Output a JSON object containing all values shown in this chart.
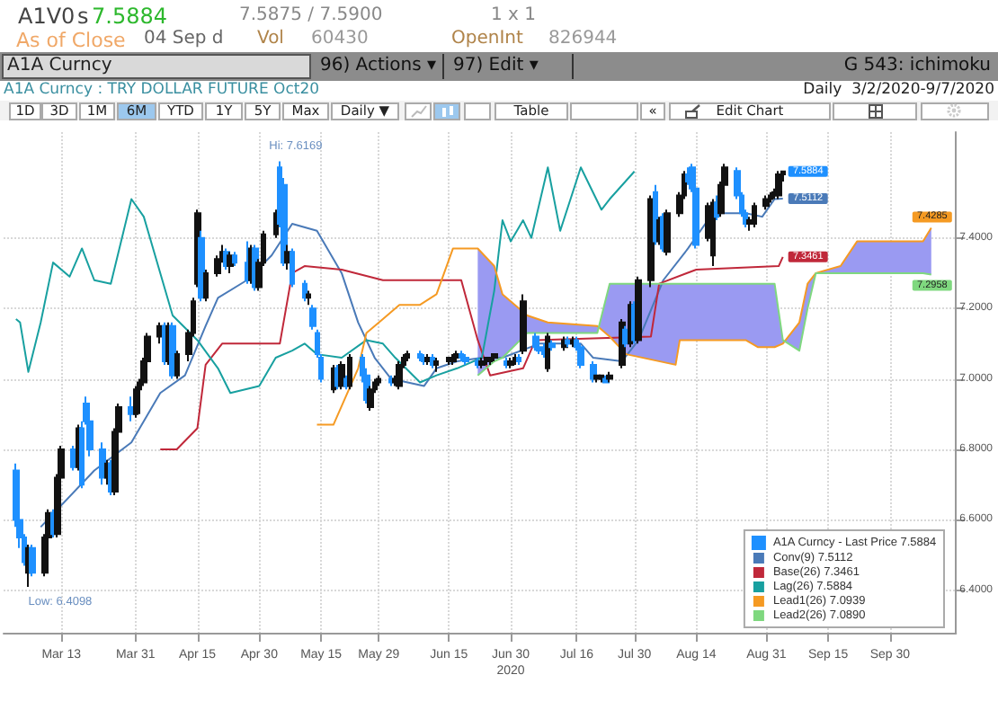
{
  "chart_data": {
    "type": "candlestick",
    "title": "A1A Curncy : TRY DOLLAR FUTURE Oct20",
    "subtitle": "Daily  3/2/2020-9/7/2020",
    "annotations": [
      "A1V0",
      "s",
      "7.5884",
      "7.5875 / 7.5900",
      "1 x 1",
      "As of Close",
      "04 Sep d",
      "Vol",
      "60430",
      "OpenInt",
      "826944",
      "A1A Curncy",
      "96) Actions ▾",
      "97) Edit ▾",
      "G 543: ichimoku",
      "1D",
      "3D",
      "1M",
      "6M",
      "YTD",
      "1Y",
      "5Y",
      "Max",
      "Daily ▼",
      "Table",
      "«",
      "Edit Chart",
      {
        "text": "Hi: 7.6169",
        "x": "2020-05-05",
        "y": 7.6169
      },
      {
        "text": "Low: 6.4098",
        "x": "2020-03-05",
        "y": 6.4098
      }
    ],
    "xlim": [
      "2020-02-28",
      "2020-10-16"
    ],
    "xticks": [
      {
        "value": "2020-03-13",
        "label": "Mar 13"
      },
      {
        "value": "2020-03-31",
        "label": "Mar 31"
      },
      {
        "value": "2020-04-15",
        "label": "Apr 15"
      },
      {
        "value": "2020-04-30",
        "label": "Apr 30"
      },
      {
        "value": "2020-05-15",
        "label": "May 15"
      },
      {
        "value": "2020-05-29",
        "label": "May 29"
      },
      {
        "value": "2020-06-15",
        "label": "Jun 15"
      },
      {
        "value": "2020-06-30",
        "label": "Jun 30\n2020"
      },
      {
        "value": "2020-07-16",
        "label": "Jul 16"
      },
      {
        "value": "2020-07-30",
        "label": "Jul 30"
      },
      {
        "value": "2020-08-14",
        "label": "Aug 14"
      },
      {
        "value": "2020-08-31",
        "label": "Aug 31"
      },
      {
        "value": "2020-09-15",
        "label": "Sep 15"
      },
      {
        "value": "2020-09-30",
        "label": "Sep 30"
      }
    ],
    "ylim": [
      6.28,
      7.7
    ],
    "yticks": [
      {
        "value": 6.4,
        "label": "6.4000"
      },
      {
        "value": 6.6,
        "label": "6.6000"
      },
      {
        "value": 6.8,
        "label": "6.8000"
      },
      {
        "value": 7.0,
        "label": "7.0000"
      },
      {
        "value": 7.2,
        "label": "7.2000"
      },
      {
        "value": 7.4,
        "label": "7.4000"
      }
    ],
    "grid": true,
    "legend": "bottom right",
    "series": [
      {
        "type": "line",
        "name": "Conv(9) 7.5112",
        "color": "#4a7ab8",
        "x": [
          "2020-03-08",
          "2020-03-21",
          "2020-03-30",
          "2020-04-06",
          "2020-04-12",
          "2020-04-17",
          "2020-04-20",
          "2020-04-27",
          "2020-05-03",
          "2020-05-08",
          "2020-05-14",
          "2020-05-20",
          "2020-05-24",
          "2020-05-28",
          "2020-06-01",
          "2020-06-09",
          "2020-06-12",
          "2020-06-17",
          "2020-06-23",
          "2020-06-28",
          "2020-07-07",
          "2020-07-17",
          "2020-07-20",
          "2020-07-27",
          "2020-07-31",
          "2020-08-06",
          "2020-08-12",
          "2020-08-18",
          "2020-08-26",
          "2020-08-30",
          "2020-09-02",
          "2020-09-04"
        ],
        "values": [
          6.58,
          6.74,
          6.82,
          6.96,
          7.01,
          7.15,
          7.23,
          7.28,
          7.35,
          7.44,
          7.42,
          7.3,
          7.16,
          7.06,
          7.0,
          6.98,
          7.03,
          7.05,
          7.06,
          7.06,
          7.1,
          7.1,
          7.06,
          7.05,
          7.11,
          7.28,
          7.37,
          7.47,
          7.47,
          7.46,
          7.51,
          7.5112
        ],
        "value_labels": [
          null,
          null,
          null,
          null,
          null,
          null,
          null,
          null,
          null,
          null,
          null,
          null,
          null,
          null,
          null,
          null,
          null,
          null,
          null,
          null,
          null,
          null,
          null,
          null,
          null,
          null,
          null,
          null,
          null,
          null,
          null,
          "7.5112"
        ]
      },
      {
        "type": "line",
        "name": "Base(26) 7.3461",
        "color": "#c0283a",
        "x": [
          "2020-04-06",
          "2020-04-10",
          "2020-04-15",
          "2020-04-17",
          "2020-04-21",
          "2020-05-05",
          "2020-05-08",
          "2020-05-11",
          "2020-05-20",
          "2020-05-30",
          "2020-06-18",
          "2020-06-22",
          "2020-06-25",
          "2020-07-03",
          "2020-07-06",
          "2020-08-03",
          "2020-08-05",
          "2020-08-14",
          "2020-09-03",
          "2020-09-04"
        ],
        "values": [
          6.8,
          6.8,
          6.86,
          7.04,
          7.1,
          7.1,
          7.3,
          7.32,
          7.31,
          7.28,
          7.28,
          7.11,
          7.01,
          7.03,
          7.11,
          7.12,
          7.27,
          7.31,
          7.32,
          7.3461
        ],
        "value_labels": [
          null,
          null,
          null,
          null,
          null,
          null,
          null,
          null,
          null,
          null,
          null,
          null,
          null,
          null,
          null,
          null,
          null,
          null,
          null,
          "7.3461"
        ]
      },
      {
        "type": "line",
        "name": "Lag(26) 7.5884",
        "color": "#18a0a0",
        "x": [
          "2020-03-02",
          "2020-03-03",
          "2020-03-05",
          "2020-03-08",
          "2020-03-11",
          "2020-03-15",
          "2020-03-18",
          "2020-03-21",
          "2020-03-25",
          "2020-03-30",
          "2020-04-02",
          "2020-04-09",
          "2020-04-15",
          "2020-04-20",
          "2020-04-23",
          "2020-04-30",
          "2020-05-04",
          "2020-05-08",
          "2020-05-11",
          "2020-05-14",
          "2020-05-20",
          "2020-05-26",
          "2020-05-30",
          "2020-06-02",
          "2020-06-08",
          "2020-06-12",
          "2020-06-17",
          "2020-06-23",
          "2020-06-26",
          "2020-06-28",
          "2020-06-30",
          "2020-07-03",
          "2020-07-05",
          "2020-07-09",
          "2020-07-12",
          "2020-07-17",
          "2020-07-22",
          "2020-07-24",
          "2020-07-30"
        ],
        "values": [
          7.17,
          7.16,
          7.02,
          7.16,
          7.33,
          7.29,
          7.37,
          7.28,
          7.27,
          7.51,
          7.46,
          7.18,
          7.11,
          7.03,
          6.96,
          6.98,
          7.06,
          7.08,
          7.1,
          7.07,
          7.06,
          7.11,
          7.1,
          7.06,
          6.99,
          7.01,
          7.03,
          7.06,
          7.25,
          7.45,
          7.39,
          7.45,
          7.4,
          7.6,
          7.42,
          7.6,
          7.48,
          7.51,
          7.5884
        ]
      },
      {
        "type": "line",
        "name": "Lead1(26) 7.0939",
        "color": "#f59a23",
        "x": [
          "2020-05-14",
          "2020-05-18",
          "2020-05-24",
          "2020-05-26",
          "2020-05-30",
          "2020-06-03",
          "2020-06-08",
          "2020-06-12",
          "2020-06-16",
          "2020-06-22",
          "2020-06-26",
          "2020-06-28",
          "2020-07-04",
          "2020-07-09",
          "2020-07-21",
          "2020-07-24",
          "2020-07-28",
          "2020-08-09",
          "2020-08-10",
          "2020-08-26",
          "2020-08-29",
          "2020-09-02",
          "2020-09-04",
          "2020-09-08",
          "2020-09-10",
          "2020-09-12",
          "2020-09-18",
          "2020-09-22",
          "2020-10-08",
          "2020-10-10"
        ],
        "values": [
          6.87,
          6.87,
          7.03,
          7.13,
          7.17,
          7.21,
          7.21,
          7.24,
          7.37,
          7.37,
          7.32,
          7.24,
          7.18,
          7.16,
          7.15,
          7.12,
          7.07,
          7.04,
          7.11,
          7.11,
          7.09,
          7.09,
          7.1,
          7.16,
          7.27,
          7.3,
          7.32,
          7.39,
          7.39,
          7.4285
        ],
        "upper": [
          null,
          null,
          null,
          null,
          null,
          null,
          null,
          null,
          null,
          7.37,
          7.32,
          7.24,
          7.18,
          7.16,
          7.15,
          7.12,
          7.07,
          7.04,
          7.11,
          7.11,
          7.09,
          7.09,
          7.1,
          7.16,
          7.27,
          7.3,
          7.32,
          7.39,
          7.39,
          7.4285
        ],
        "lower": [
          null,
          null,
          null,
          null,
          null,
          null,
          null,
          null,
          null,
          7.01,
          7.05,
          7.06,
          7.13,
          7.13,
          7.13,
          7.27,
          7.27,
          7.27,
          7.27,
          7.27,
          7.27,
          7.27,
          7.11,
          7.08,
          7.2,
          7.3,
          7.3,
          7.3,
          7.3,
          7.2958
        ],
        "value_labels": [
          null,
          null,
          null,
          null,
          null,
          null,
          null,
          null,
          null,
          null,
          null,
          null,
          null,
          null,
          null,
          null,
          null,
          null,
          null,
          null,
          null,
          null,
          null,
          null,
          null,
          null,
          null,
          null,
          null,
          "7.4285"
        ]
      },
      {
        "type": "line",
        "name": "Lead2(26) 7.0890",
        "color": "#7fd87f",
        "x": [
          "2020-06-22",
          "2020-06-26",
          "2020-06-28",
          "2020-07-04",
          "2020-07-09",
          "2020-07-21",
          "2020-07-24",
          "2020-07-28",
          "2020-08-09",
          "2020-08-10",
          "2020-08-26",
          "2020-08-29",
          "2020-09-02",
          "2020-09-04",
          "2020-09-08",
          "2020-09-10",
          "2020-09-12",
          "2020-09-18",
          "2020-09-22",
          "2020-10-08",
          "2020-10-10"
        ],
        "values": [
          7.01,
          7.05,
          7.06,
          7.13,
          7.13,
          7.13,
          7.27,
          7.27,
          7.27,
          7.27,
          7.27,
          7.27,
          7.27,
          7.11,
          7.08,
          7.2,
          7.3,
          7.3,
          7.3,
          7.3,
          7.2958
        ],
        "value_labels": [
          null,
          null,
          null,
          null,
          null,
          null,
          null,
          null,
          null,
          null,
          null,
          null,
          null,
          null,
          null,
          null,
          null,
          null,
          null,
          null,
          "7.2958"
        ]
      },
      {
        "name": "A1A Curncy - Last Price 7.5884",
        "color": "#1e90ff",
        "x": [
          "2020-03-02",
          "2020-03-03",
          "2020-03-04",
          "2020-03-05",
          "2020-03-06",
          "2020-03-09",
          "2020-03-10",
          "2020-03-11",
          "2020-03-12",
          "2020-03-13",
          "2020-03-16",
          "2020-03-17",
          "2020-03-18",
          "2020-03-19",
          "2020-03-20",
          "2020-03-23",
          "2020-03-24",
          "2020-03-25",
          "2020-03-26",
          "2020-03-27",
          "2020-03-30",
          "2020-03-31",
          "2020-04-01",
          "2020-04-02",
          "2020-04-03",
          "2020-04-06",
          "2020-04-07",
          "2020-04-08",
          "2020-04-09",
          "2020-04-10",
          "2020-04-13",
          "2020-04-14",
          "2020-04-15",
          "2020-04-16",
          "2020-04-17",
          "2020-04-20",
          "2020-04-21",
          "2020-04-22",
          "2020-04-23",
          "2020-04-24",
          "2020-04-27",
          "2020-04-28",
          "2020-04-29",
          "2020-04-30",
          "2020-05-01",
          "2020-05-04",
          "2020-05-05",
          "2020-05-06",
          "2020-05-07",
          "2020-05-08",
          "2020-05-11",
          "2020-05-12",
          "2020-05-13",
          "2020-05-14",
          "2020-05-15",
          "2020-05-18",
          "2020-05-19",
          "2020-05-20",
          "2020-05-21",
          "2020-05-22",
          "2020-05-25",
          "2020-05-26",
          "2020-05-27",
          "2020-05-28",
          "2020-05-29",
          "2020-06-01",
          "2020-06-02",
          "2020-06-03",
          "2020-06-04",
          "2020-06-05",
          "2020-06-08",
          "2020-06-09",
          "2020-06-10",
          "2020-06-11",
          "2020-06-12",
          "2020-06-15",
          "2020-06-16",
          "2020-06-17",
          "2020-06-18",
          "2020-06-19",
          "2020-06-22",
          "2020-06-23",
          "2020-06-24",
          "2020-06-25",
          "2020-06-26",
          "2020-06-29",
          "2020-06-30",
          "2020-07-01",
          "2020-07-02",
          "2020-07-03",
          "2020-07-06",
          "2020-07-07",
          "2020-07-08",
          "2020-07-09",
          "2020-07-10",
          "2020-07-13",
          "2020-07-14",
          "2020-07-15",
          "2020-07-16",
          "2020-07-17",
          "2020-07-20",
          "2020-07-21",
          "2020-07-22",
          "2020-07-23",
          "2020-07-24",
          "2020-07-27",
          "2020-07-28",
          "2020-07-29",
          "2020-07-30",
          "2020-07-31",
          "2020-08-03",
          "2020-08-04",
          "2020-08-05",
          "2020-08-06",
          "2020-08-07",
          "2020-08-10",
          "2020-08-11",
          "2020-08-12",
          "2020-08-13",
          "2020-08-14",
          "2020-08-17",
          "2020-08-18",
          "2020-08-19",
          "2020-08-20",
          "2020-08-21",
          "2020-08-24",
          "2020-08-25",
          "2020-08-26",
          "2020-08-27",
          "2020-08-28",
          "2020-08-31",
          "2020-09-01",
          "2020-09-02",
          "2020-09-03",
          "2020-09-04"
        ],
        "ohlc": [
          [
            6.74,
            6.76,
            6.58,
            6.6
          ],
          [
            6.6,
            6.62,
            6.52,
            6.55
          ],
          [
            6.55,
            6.56,
            6.47,
            6.48
          ],
          [
            6.45,
            6.53,
            6.4098,
            6.52
          ],
          [
            6.52,
            6.53,
            6.44,
            6.45
          ],
          [
            6.45,
            6.56,
            6.44,
            6.55
          ],
          [
            6.55,
            6.63,
            6.54,
            6.62
          ],
          [
            6.62,
            6.63,
            6.55,
            6.56
          ],
          [
            6.56,
            6.73,
            6.55,
            6.72
          ],
          [
            6.72,
            6.81,
            6.7,
            6.8
          ],
          [
            6.8,
            6.81,
            6.74,
            6.75
          ],
          [
            6.75,
            6.87,
            6.74,
            6.86
          ],
          [
            6.86,
            6.88,
            6.69,
            6.7
          ],
          [
            6.93,
            6.95,
            6.87,
            6.88
          ],
          [
            6.88,
            6.9,
            6.78,
            6.8
          ],
          [
            6.8,
            6.82,
            6.7,
            6.72
          ],
          [
            6.72,
            6.77,
            6.7,
            6.76
          ],
          [
            6.76,
            6.77,
            6.67,
            6.68
          ],
          [
            6.68,
            6.86,
            6.67,
            6.85
          ],
          [
            6.85,
            6.93,
            6.84,
            6.92
          ],
          [
            6.92,
            6.95,
            6.88,
            6.9
          ],
          [
            6.9,
            6.98,
            6.89,
            6.97
          ],
          [
            6.97,
            7.0,
            6.9,
            6.99
          ],
          [
            6.99,
            7.06,
            6.98,
            7.05
          ],
          [
            7.05,
            7.13,
            7.04,
            7.12
          ],
          [
            7.12,
            7.16,
            7.1,
            7.15
          ],
          [
            7.15,
            7.16,
            7.04,
            7.05
          ],
          [
            7.05,
            7.16,
            7.04,
            7.15
          ],
          [
            7.15,
            7.16,
            7.0,
            7.01
          ],
          [
            7.01,
            7.08,
            7.0,
            7.07
          ],
          [
            7.07,
            7.14,
            7.05,
            7.13
          ],
          [
            7.13,
            7.23,
            7.12,
            7.22
          ],
          [
            7.27,
            7.48,
            7.26,
            7.47
          ],
          [
            7.4,
            7.42,
            7.22,
            7.23
          ],
          [
            7.23,
            7.31,
            7.22,
            7.3
          ],
          [
            7.3,
            7.35,
            7.29,
            7.34
          ],
          [
            7.34,
            7.38,
            7.33,
            7.36
          ],
          [
            7.36,
            7.37,
            7.31,
            7.32
          ],
          [
            7.32,
            7.36,
            7.3,
            7.35
          ],
          [
            7.35,
            7.36,
            7.32,
            7.33
          ],
          [
            7.33,
            7.39,
            7.27,
            7.28
          ],
          [
            7.28,
            7.38,
            7.27,
            7.37
          ],
          [
            7.37,
            7.38,
            7.25,
            7.26
          ],
          [
            7.26,
            7.34,
            7.25,
            7.33
          ],
          [
            7.33,
            7.42,
            7.32,
            7.41
          ],
          [
            7.41,
            7.48,
            7.4,
            7.47
          ],
          [
            7.6,
            7.6169,
            7.43,
            7.44
          ],
          [
            7.55,
            7.57,
            7.32,
            7.33
          ],
          [
            7.33,
            7.38,
            7.31,
            7.36
          ],
          [
            7.36,
            7.37,
            7.26,
            7.27
          ],
          [
            7.27,
            7.28,
            7.22,
            7.23
          ],
          [
            7.23,
            7.25,
            7.21,
            7.24
          ],
          [
            7.2,
            7.21,
            7.14,
            7.15
          ],
          [
            7.13,
            7.14,
            7.06,
            7.07
          ],
          [
            7.06,
            7.07,
            6.99,
            7.0
          ],
          [
            6.97,
            7.04,
            6.96,
            7.03
          ],
          [
            7.03,
            7.04,
            6.97,
            6.98
          ],
          [
            6.98,
            7.05,
            6.97,
            7.04
          ],
          [
            7.0,
            7.01,
            6.97,
            6.98
          ],
          [
            6.98,
            7.07,
            6.97,
            7.06
          ],
          [
            7.06,
            7.07,
            6.99,
            7.01
          ],
          [
            7.01,
            7.03,
            6.93,
            6.94
          ],
          [
            6.92,
            6.98,
            6.91,
            6.97
          ],
          [
            6.97,
            7.0,
            6.96,
            6.99
          ],
          [
            6.99,
            7.01,
            6.98,
            7.0
          ],
          [
            7.0,
            7.01,
            6.98,
            6.99
          ],
          [
            6.99,
            7.01,
            6.98,
            7.0
          ],
          [
            6.98,
            7.05,
            6.97,
            7.04
          ],
          [
            7.04,
            7.07,
            7.03,
            7.06
          ],
          [
            7.06,
            7.08,
            7.05,
            7.07
          ],
          [
            7.07,
            7.08,
            7.05,
            7.06
          ],
          [
            7.06,
            7.07,
            7.04,
            7.05
          ],
          [
            7.05,
            7.07,
            7.04,
            7.06
          ],
          [
            7.06,
            7.07,
            7.03,
            7.04
          ],
          [
            7.04,
            7.06,
            7.02,
            7.05
          ],
          [
            7.05,
            7.06,
            7.04,
            7.06
          ],
          [
            7.05,
            7.07,
            7.04,
            7.06
          ],
          [
            7.06,
            7.08,
            7.05,
            7.07
          ],
          [
            7.07,
            7.08,
            7.05,
            7.06
          ],
          [
            7.06,
            7.07,
            7.04,
            7.05
          ],
          [
            7.05,
            7.06,
            7.03,
            7.04
          ],
          [
            7.04,
            7.06,
            7.03,
            7.05
          ],
          [
            7.05,
            7.06,
            7.04,
            7.06
          ],
          [
            7.05,
            7.06,
            7.04,
            7.06
          ],
          [
            7.06,
            7.07,
            7.05,
            7.07
          ],
          [
            7.05,
            7.06,
            7.03,
            7.04
          ],
          [
            7.04,
            7.06,
            7.03,
            7.05
          ],
          [
            7.05,
            7.07,
            7.04,
            7.06
          ],
          [
            7.06,
            7.07,
            7.04,
            7.05
          ],
          [
            7.08,
            7.24,
            7.07,
            7.22
          ],
          [
            7.12,
            7.13,
            7.08,
            7.09
          ],
          [
            7.09,
            7.12,
            7.07,
            7.08
          ],
          [
            7.08,
            7.1,
            7.06,
            7.07
          ],
          [
            7.03,
            7.13,
            7.02,
            7.12
          ],
          [
            7.1,
            7.11,
            7.08,
            7.09
          ],
          [
            7.09,
            7.12,
            7.08,
            7.11
          ],
          [
            7.11,
            7.12,
            7.09,
            7.1
          ],
          [
            7.1,
            7.12,
            7.09,
            7.11
          ],
          [
            7.11,
            7.12,
            7.08,
            7.09
          ],
          [
            7.09,
            7.1,
            7.03,
            7.04
          ],
          [
            7.04,
            7.05,
            6.99,
            7.0
          ],
          [
            7.0,
            7.01,
            6.99,
            7.01
          ],
          [
            7.0,
            7.01,
            6.99,
            7.01
          ],
          [
            7.0,
            7.01,
            6.99,
            6.99
          ],
          [
            7.0,
            7.02,
            6.99,
            7.01
          ],
          [
            7.04,
            7.17,
            7.03,
            7.16
          ],
          [
            7.14,
            7.15,
            7.09,
            7.1
          ],
          [
            7.1,
            7.22,
            7.09,
            7.21
          ],
          [
            7.21,
            7.22,
            7.1,
            7.11
          ],
          [
            7.11,
            7.29,
            7.1,
            7.28
          ],
          [
            7.28,
            7.52,
            7.26,
            7.51
          ],
          [
            7.53,
            7.55,
            7.38,
            7.39
          ],
          [
            7.39,
            7.46,
            7.38,
            7.45
          ],
          [
            7.46,
            7.47,
            7.36,
            7.37
          ],
          [
            7.36,
            7.48,
            7.35,
            7.47
          ],
          [
            7.47,
            7.53,
            7.46,
            7.52
          ],
          [
            7.52,
            7.59,
            7.51,
            7.58
          ],
          [
            7.58,
            7.6,
            7.55,
            7.56
          ],
          [
            7.6,
            7.61,
            7.53,
            7.54
          ],
          [
            7.54,
            7.55,
            7.37,
            7.38
          ],
          [
            7.4,
            7.5,
            7.39,
            7.49
          ],
          [
            7.35,
            7.51,
            7.32,
            7.5
          ],
          [
            7.5,
            7.52,
            7.45,
            7.46
          ],
          [
            7.47,
            7.56,
            7.46,
            7.55
          ],
          [
            7.55,
            7.61,
            7.54,
            7.6
          ],
          [
            7.59,
            7.6,
            7.51,
            7.52
          ],
          [
            7.52,
            7.53,
            7.46,
            7.47
          ],
          [
            7.47,
            7.48,
            7.43,
            7.44
          ],
          [
            7.44,
            7.46,
            7.42,
            7.45
          ],
          [
            7.44,
            7.5,
            7.43,
            7.49
          ],
          [
            7.49,
            7.52,
            7.48,
            7.51
          ],
          [
            7.51,
            7.53,
            7.5,
            7.52
          ],
          [
            7.52,
            7.54,
            7.51,
            7.53
          ],
          [
            7.52,
            7.59,
            7.51,
            7.58
          ],
          [
            7.58,
            7.59,
            7.56,
            7.5884
          ]
        ],
        "colors": [
          "#1e90ff",
          "#1e90ff",
          "#1e90ff",
          "#111111",
          "#1e90ff",
          "#111111",
          "#111111",
          "#1e90ff",
          "#111111",
          "#111111",
          "#1e90ff",
          "#111111",
          "#1e90ff",
          "#1e90ff",
          "#1e90ff",
          "#1e90ff",
          "#111111",
          "#1e90ff",
          "#111111",
          "#111111",
          "#1e90ff",
          "#111111",
          "#111111",
          "#111111",
          "#111111",
          "#111111",
          "#1e90ff",
          "#111111",
          "#1e90ff",
          "#111111",
          "#111111",
          "#111111",
          "#111111",
          "#1e90ff",
          "#111111",
          "#111111",
          "#111111",
          "#1e90ff",
          "#111111",
          "#1e90ff",
          "#1e90ff",
          "#111111",
          "#1e90ff",
          "#111111",
          "#111111",
          "#111111",
          "#1e90ff",
          "#1e90ff",
          "#111111",
          "#1e90ff",
          "#1e90ff",
          "#111111",
          "#1e90ff",
          "#1e90ff",
          "#1e90ff",
          "#111111",
          "#1e90ff",
          "#111111",
          "#1e90ff",
          "#111111",
          "#1e90ff",
          "#1e90ff",
          "#111111",
          "#111111",
          "#111111",
          "#1e90ff",
          "#111111",
          "#111111",
          "#111111",
          "#111111",
          "#1e90ff",
          "#1e90ff",
          "#111111",
          "#1e90ff",
          "#111111",
          "#111111",
          "#111111",
          "#111111",
          "#1e90ff",
          "#1e90ff",
          "#1e90ff",
          "#111111",
          "#111111",
          "#111111",
          "#111111",
          "#1e90ff",
          "#111111",
          "#111111",
          "#1e90ff",
          "#111111",
          "#1e90ff",
          "#1e90ff",
          "#1e90ff",
          "#111111",
          "#1e90ff",
          "#111111",
          "#1e90ff",
          "#111111",
          "#1e90ff",
          "#1e90ff",
          "#1e90ff",
          "#111111",
          "#111111",
          "#1e90ff",
          "#111111",
          "#111111",
          "#1e90ff",
          "#111111",
          "#1e90ff",
          "#111111",
          "#111111",
          "#1e90ff",
          "#111111",
          "#1e90ff",
          "#111111",
          "#111111",
          "#111111",
          "#1e90ff",
          "#1e90ff",
          "#1e90ff",
          "#111111",
          "#111111",
          "#1e90ff",
          "#111111",
          "#111111",
          "#1e90ff",
          "#1e90ff",
          "#1e90ff",
          "#111111",
          "#111111",
          "#111111",
          "#111111",
          "#111111",
          "#111111",
          "#111111"
        ],
        "value_labels": [
          null,
          null,
          null,
          null,
          null,
          null,
          null,
          null,
          null,
          null,
          null,
          null,
          null,
          null,
          null,
          null,
          null,
          null,
          null,
          null,
          null,
          null,
          null,
          null,
          null,
          null,
          null,
          null,
          null,
          null,
          null,
          null,
          null,
          null,
          null,
          null,
          null,
          null,
          null,
          null,
          null,
          null,
          null,
          null,
          null,
          null,
          null,
          null,
          null,
          null,
          null,
          null,
          null,
          null,
          null,
          null,
          null,
          null,
          null,
          null,
          null,
          null,
          null,
          null,
          null,
          null,
          null,
          null,
          null,
          null,
          null,
          null,
          null,
          null,
          null,
          null,
          null,
          null,
          null,
          null,
          null,
          null,
          null,
          null,
          null,
          null,
          null,
          null,
          null,
          null,
          null,
          null,
          null,
          null,
          null,
          null,
          null,
          null,
          null,
          null,
          null,
          null,
          null,
          null,
          null,
          null,
          null,
          null,
          null,
          null,
          null,
          null,
          null,
          null,
          null,
          null,
          null,
          null,
          null,
          null,
          null,
          null,
          null,
          null,
          null,
          null,
          null,
          null,
          null,
          null,
          null,
          null,
          null,
          null,
          "7.5884"
        ]
      }
    ]
  }
}
